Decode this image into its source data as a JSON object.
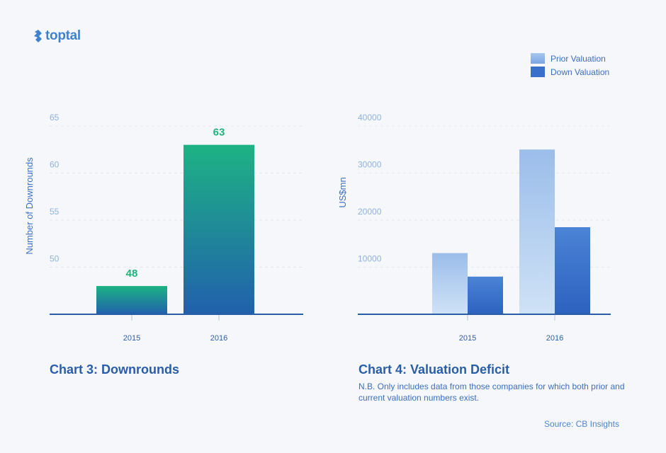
{
  "brand": {
    "name": "toptal",
    "icon": "toptal-logo-icon"
  },
  "colors": {
    "accent_green": "#20b37c",
    "bar_gradient_top": "#1db384",
    "bar_gradient_bottom": "#2160ac",
    "prior_top": "#9bbdea",
    "prior_bottom": "#cfe2f6",
    "down_top": "#4b83d6",
    "down_bottom": "#2d62bf",
    "tick_text": "#8fb2df",
    "axis": "#2a5da8",
    "caption": "#2a5da8"
  },
  "legend": {
    "items": [
      {
        "label": "Prior Valuation"
      },
      {
        "label": "Down Valuation"
      }
    ]
  },
  "chart3": {
    "caption": "Chart 3: Downrounds"
  },
  "chart4": {
    "caption": "Chart 4: Valuation Deficit",
    "note": "N.B. Only includes data from those companies for which both prior and current valuation numbers exist."
  },
  "source": "Source: CB Insights",
  "chart_data": [
    {
      "type": "bar",
      "title": "Chart 3: Downrounds",
      "categories": [
        "2015",
        "2016"
      ],
      "values": [
        48,
        63
      ],
      "data_labels": [
        "48",
        "63"
      ],
      "xlabel": "",
      "ylabel": "Number of Downrounds",
      "ylim": [
        45,
        65
      ],
      "yticks": [
        50,
        55,
        60,
        65
      ],
      "grid": true
    },
    {
      "type": "bar",
      "title": "Chart 4: Valuation Deficit",
      "categories": [
        "2015",
        "2016"
      ],
      "series": [
        {
          "name": "Prior Valuation",
          "values": [
            13000,
            35000
          ]
        },
        {
          "name": "Down Valuation",
          "values": [
            8000,
            18500
          ]
        }
      ],
      "xlabel": "",
      "ylabel": "US$mn",
      "ylim": [
        0,
        40000
      ],
      "yticks": [
        10000,
        20000,
        30000,
        40000
      ],
      "grid": true,
      "legend": "top-right"
    }
  ]
}
